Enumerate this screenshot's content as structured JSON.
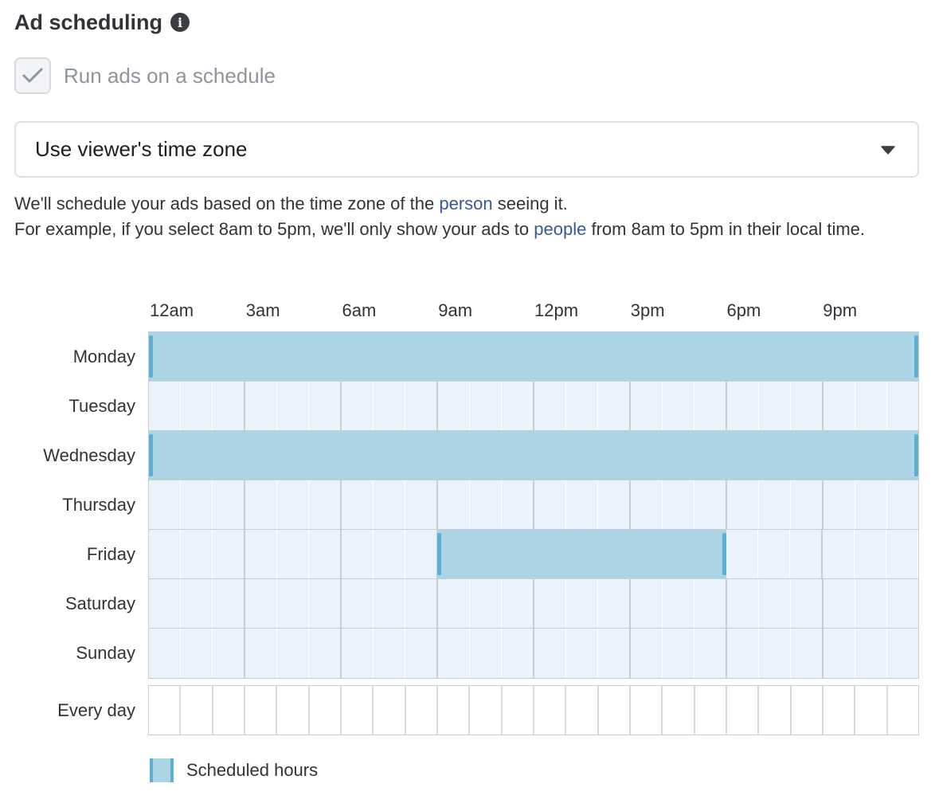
{
  "title": "Ad scheduling",
  "info_icon": "info-icon",
  "schedule_checkbox": {
    "label": "Run ads on a schedule",
    "checked": true,
    "disabled": true
  },
  "timezone_select": {
    "value": "Use viewer's time zone",
    "icon": "caret-down-icon"
  },
  "description": {
    "line1_before": "We'll schedule your ads based on the time zone of the ",
    "line1_link": "person",
    "line1_after": " seeing it.",
    "line2_before": "For example, if you select 8am to 5pm, we'll only show your ads to ",
    "line2_link": "people",
    "line2_after": " from 8am to 5pm in their local time."
  },
  "hour_labels": [
    "12am",
    "3am",
    "6am",
    "9am",
    "12pm",
    "3pm",
    "6pm",
    "9pm"
  ],
  "days": [
    {
      "label": "Monday",
      "scheduled": [
        [
          0,
          24
        ]
      ]
    },
    {
      "label": "Tuesday",
      "scheduled": []
    },
    {
      "label": "Wednesday",
      "scheduled": [
        [
          0,
          24
        ]
      ]
    },
    {
      "label": "Thursday",
      "scheduled": []
    },
    {
      "label": "Friday",
      "scheduled": [
        [
          9,
          18
        ]
      ]
    },
    {
      "label": "Saturday",
      "scheduled": []
    },
    {
      "label": "Sunday",
      "scheduled": []
    }
  ],
  "every_day_label": "Every day",
  "legend": {
    "label": "Scheduled hours"
  },
  "colors": {
    "scheduled_fill": "#abd5e5",
    "scheduled_edge": "#5aafd3",
    "empty_cell": "#eaf2fc",
    "link": "#385898"
  }
}
